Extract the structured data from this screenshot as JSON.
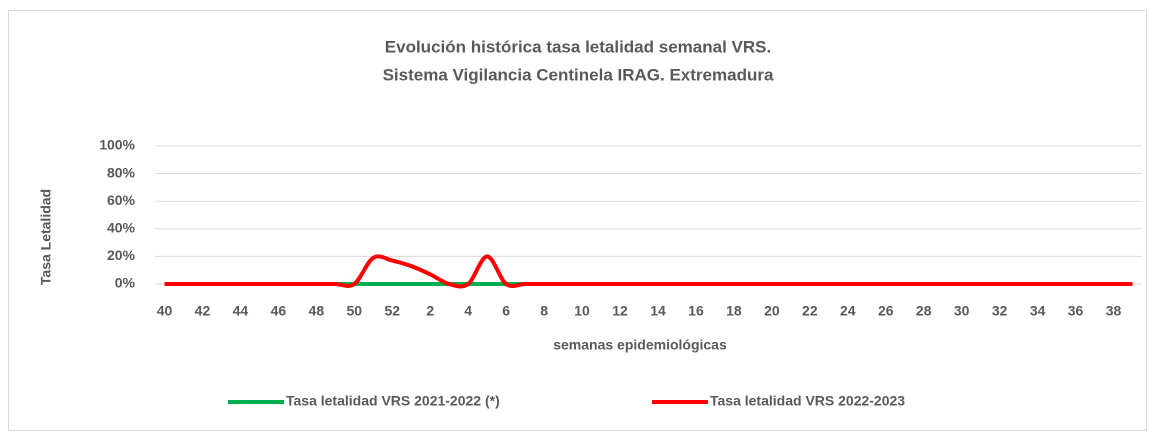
{
  "chart_data": {
    "type": "line",
    "title": [
      "Evolución histórica tasa letalidad semanal VRS.",
      "Sistema  Vigilancia Centinela IRAG. Extremadura"
    ],
    "x_label": "semanas epidemiológicas",
    "y_label": "Tasa Letalidad",
    "categories": [
      "40",
      null,
      "42",
      null,
      "44",
      null,
      "46",
      null,
      "48",
      null,
      "50",
      null,
      "52",
      null,
      "2",
      null,
      "4",
      null,
      "6",
      null,
      "8",
      null,
      "10",
      null,
      "12",
      null,
      "14",
      null,
      "16",
      null,
      "18",
      null,
      "20",
      null,
      "22",
      null,
      "24",
      null,
      "26",
      null,
      "28",
      null,
      "30",
      null,
      "32",
      null,
      "34",
      null,
      "36",
      null,
      "38",
      null
    ],
    "series": [
      {
        "name": "Tasa letalidad VRS 2021-2022 (*)",
        "color": "#00b050",
        "values": [
          0,
          0,
          0,
          0,
          0,
          0,
          0,
          0,
          0,
          0,
          0,
          0,
          0,
          0,
          0,
          0,
          0,
          0,
          0,
          0,
          0,
          0,
          0,
          0,
          0,
          0,
          0,
          0,
          0,
          0,
          0,
          0,
          0,
          0,
          0,
          0,
          0,
          0,
          0,
          0,
          0,
          0,
          0,
          0,
          0,
          0,
          0,
          0,
          0,
          0,
          0,
          0
        ]
      },
      {
        "name": "Tasa letalidad VRS 2022-2023",
        "color": "#ff0000",
        "values": [
          0,
          0,
          0,
          0,
          0,
          0,
          0,
          0,
          0,
          0,
          0,
          19,
          17,
          13,
          7,
          0,
          0,
          20,
          0,
          0,
          0,
          0,
          0,
          0,
          0,
          0,
          0,
          0,
          0,
          0,
          0,
          0,
          0,
          0,
          0,
          0,
          0,
          0,
          0,
          0,
          0,
          0,
          0,
          0,
          0,
          0,
          0,
          0,
          0,
          0,
          0,
          0
        ]
      }
    ],
    "ylim": [
      0,
      100
    ],
    "yticks": [
      {
        "value": 0,
        "label": "0%"
      },
      {
        "value": 20,
        "label": "20%"
      },
      {
        "value": 40,
        "label": "40%"
      },
      {
        "value": 60,
        "label": "60%"
      },
      {
        "value": 80,
        "label": "80%"
      },
      {
        "value": 100,
        "label": "100%"
      }
    ],
    "grid": true,
    "legend": "bottom"
  }
}
